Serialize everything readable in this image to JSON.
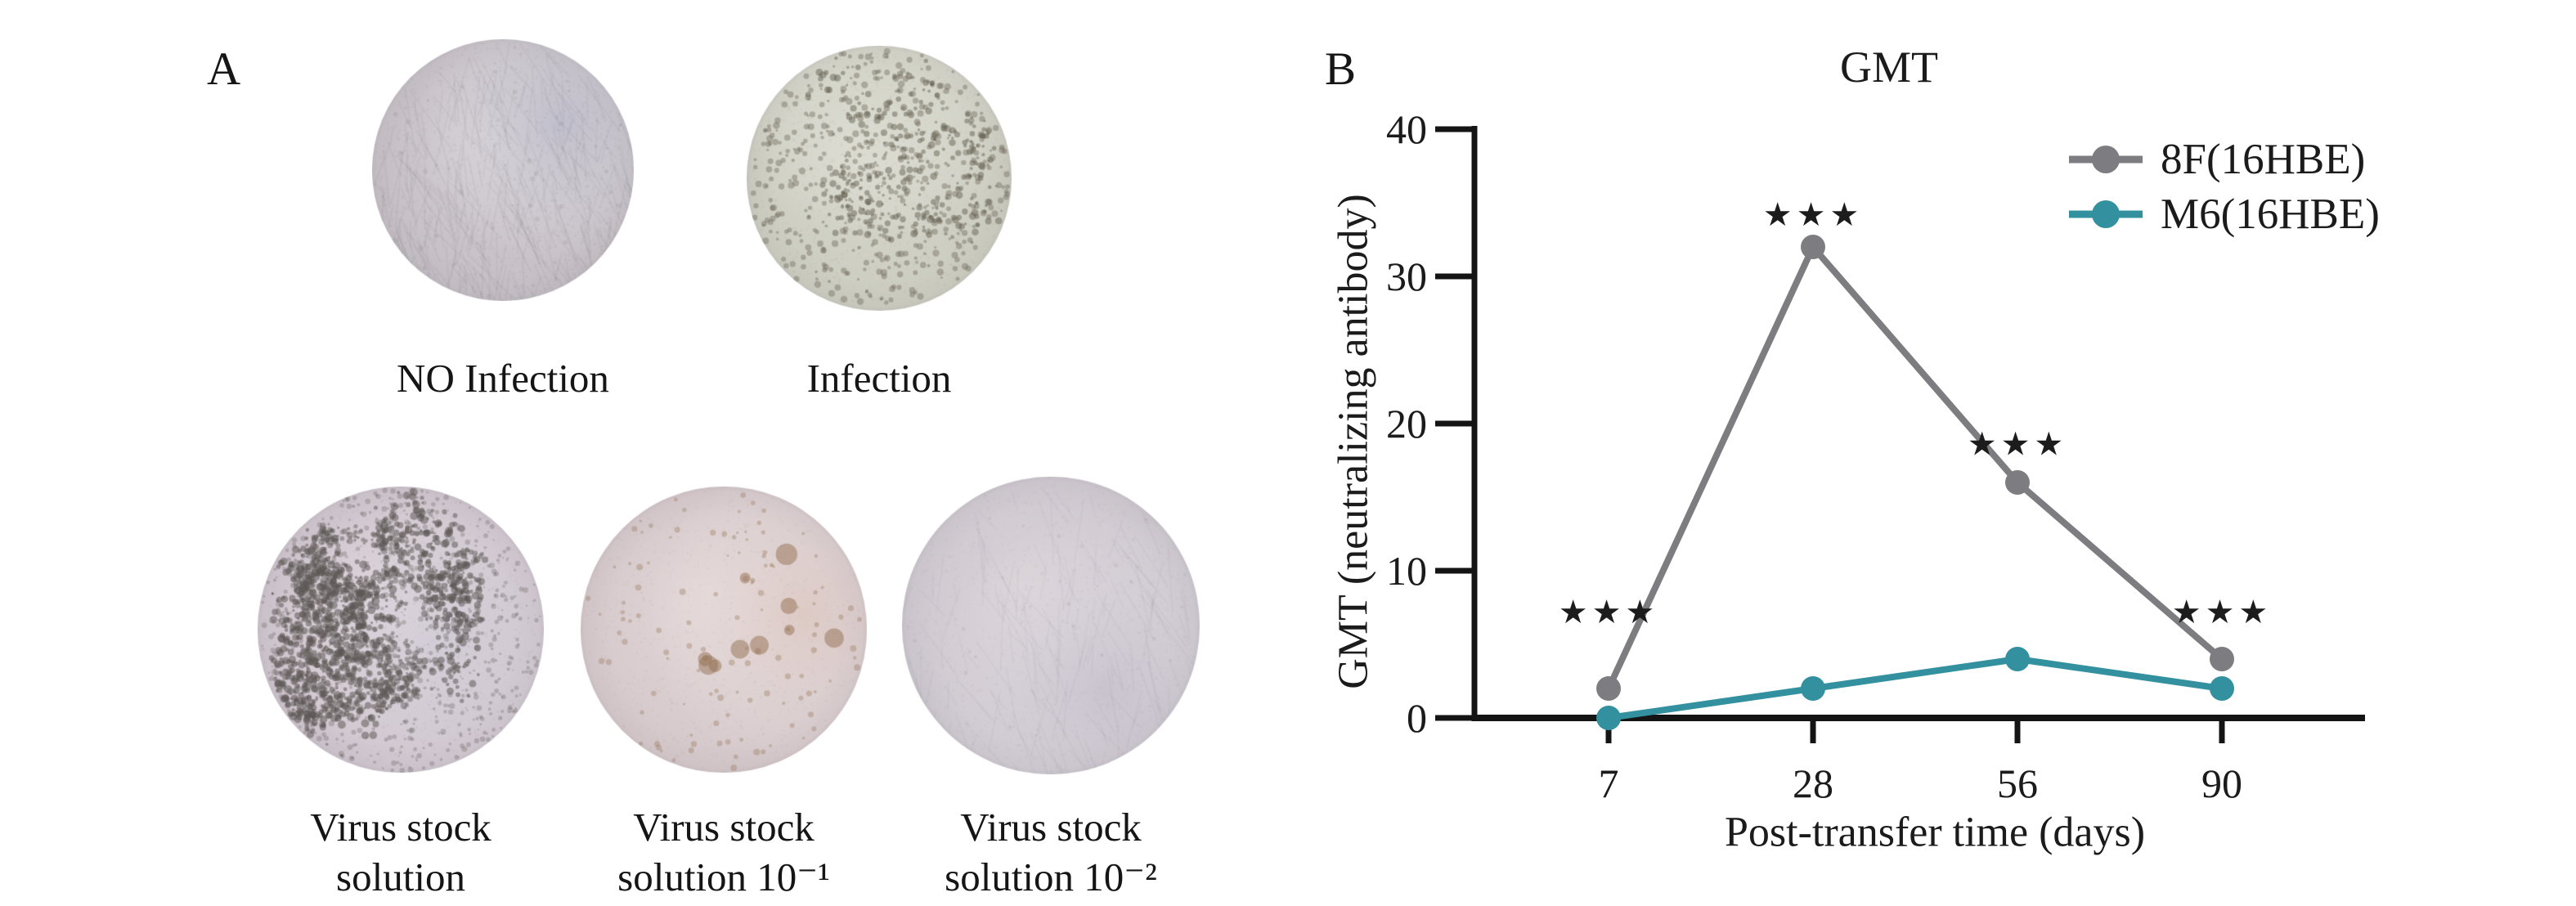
{
  "panel_a": {
    "letter": "A",
    "wells": [
      {
        "id": "no-infection",
        "label_line1": "NO Infection",
        "label_line2": ""
      },
      {
        "id": "infection",
        "label_line1": "Infection",
        "label_line2": ""
      },
      {
        "id": "virus-stock",
        "label_line1": "Virus stock",
        "label_line2": "solution"
      },
      {
        "id": "virus-stock-10-1",
        "label_line1": "Virus stock",
        "label_line2": "solution 10⁻¹"
      },
      {
        "id": "virus-stock-10-2",
        "label_line1": "Virus stock",
        "label_line2": "solution 10⁻²"
      }
    ]
  },
  "panel_b": {
    "letter": "B"
  },
  "chart_data": {
    "type": "line",
    "title": "GMT",
    "xlabel": "Post-transfer time (days)",
    "ylabel": "GMT (neutralizing antibody)",
    "categories": [
      "7",
      "28",
      "56",
      "90"
    ],
    "ylim": [
      0,
      40
    ],
    "yticks": [
      0,
      10,
      20,
      30,
      40
    ],
    "grid": false,
    "legend_position": "top-right",
    "axis_color": "#141414",
    "text_color": "#1b1b1b",
    "significance_color": "#1c1c1c",
    "series": [
      {
        "name": "8F(16HBE)",
        "color": "#7d7c81",
        "values": [
          2,
          32,
          16,
          4
        ]
      },
      {
        "name": "M6(16HBE)",
        "color": "#33909f",
        "values": [
          0,
          2,
          4,
          2
        ]
      }
    ],
    "annotations": [
      {
        "x": "7",
        "y": 7.2,
        "text": "***"
      },
      {
        "x": "28",
        "y": 34.2,
        "text": "***"
      },
      {
        "x": "56",
        "y": 18.6,
        "text": "***"
      },
      {
        "x": "90",
        "y": 7.2,
        "text": "***"
      }
    ]
  }
}
